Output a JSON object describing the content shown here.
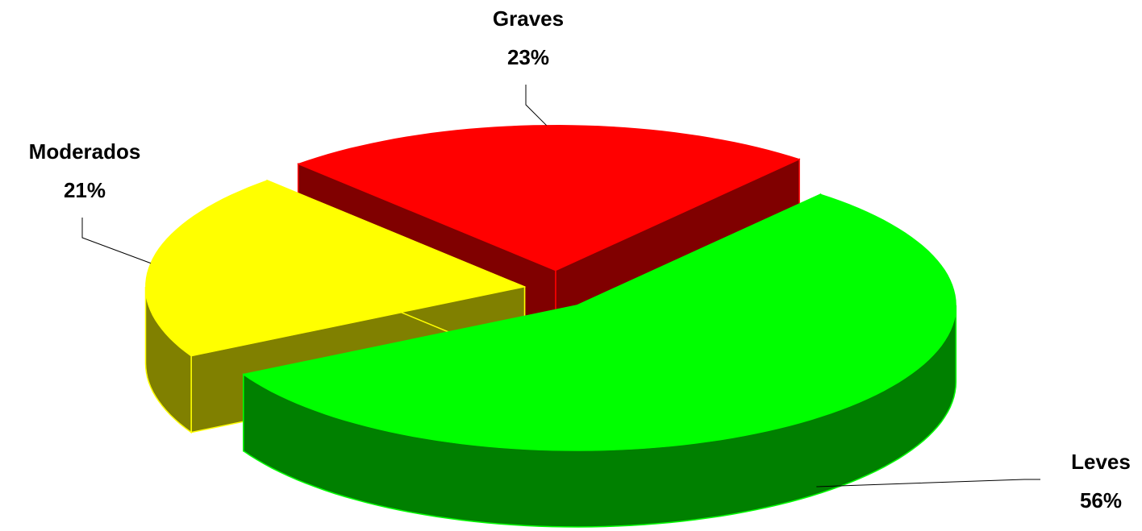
{
  "chart_data": {
    "type": "pie3d",
    "categories": [
      "Leves",
      "Moderados",
      "Graves"
    ],
    "values": [
      56,
      21,
      23
    ],
    "value_labels": [
      "56%",
      "21%",
      "23%"
    ],
    "colors": [
      "#00ff00",
      "#ffff00",
      "#ff0000"
    ],
    "side_colors": [
      "#008000",
      "#808000",
      "#800000"
    ]
  }
}
